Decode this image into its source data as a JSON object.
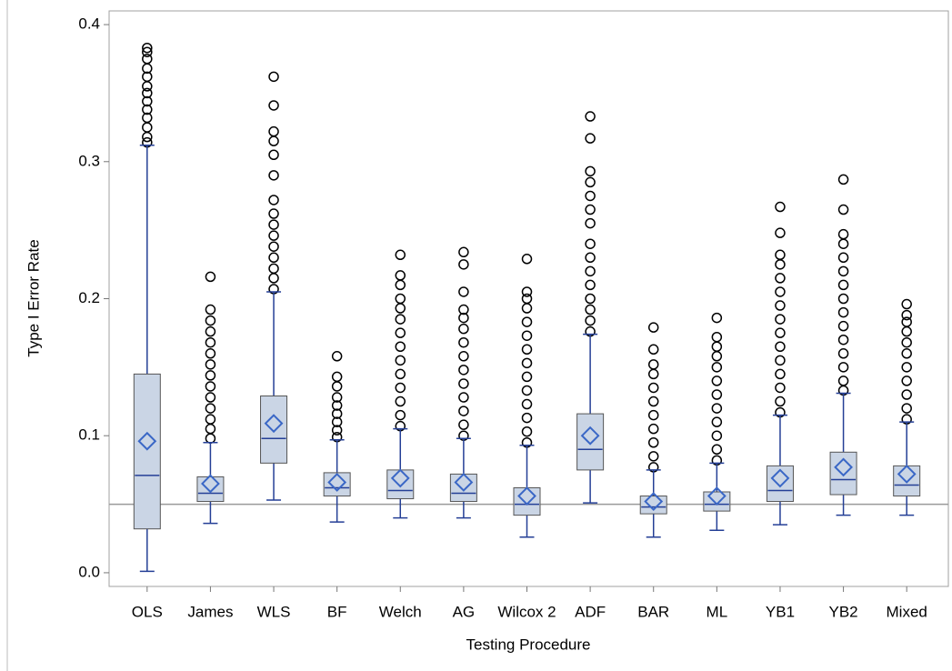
{
  "chart_data": {
    "type": "box",
    "x_label": "Testing Procedure",
    "y_label": "Type I Error Rate",
    "categories": [
      "OLS",
      "James",
      "WLS",
      "BF",
      "Welch",
      "AG",
      "Wilcox 2",
      "ADF",
      "BAR",
      "ML",
      "YB1",
      "YB2",
      "Mixed"
    ],
    "whisker_low": [
      0.001,
      0.036,
      0.053,
      0.037,
      0.04,
      0.04,
      0.026,
      0.051,
      0.026,
      0.031,
      0.035,
      0.042,
      0.042
    ],
    "q1": [
      0.032,
      0.052,
      0.08,
      0.056,
      0.054,
      0.052,
      0.042,
      0.075,
      0.043,
      0.045,
      0.052,
      0.057,
      0.056
    ],
    "median": [
      0.071,
      0.058,
      0.098,
      0.062,
      0.06,
      0.058,
      0.05,
      0.09,
      0.048,
      0.05,
      0.06,
      0.068,
      0.064
    ],
    "q3": [
      0.145,
      0.07,
      0.129,
      0.073,
      0.075,
      0.072,
      0.062,
      0.116,
      0.056,
      0.059,
      0.078,
      0.088,
      0.078
    ],
    "whisker_high": [
      0.312,
      0.095,
      0.205,
      0.097,
      0.105,
      0.098,
      0.093,
      0.174,
      0.075,
      0.08,
      0.115,
      0.131,
      0.11
    ],
    "mean": [
      0.096,
      0.065,
      0.109,
      0.066,
      0.069,
      0.066,
      0.056,
      0.1,
      0.052,
      0.056,
      0.069,
      0.077,
      0.072
    ],
    "outliers": [
      [
        0.314,
        0.318,
        0.325,
        0.332,
        0.338,
        0.344,
        0.35,
        0.355,
        0.362,
        0.368,
        0.375,
        0.38,
        0.383
      ],
      [
        0.098,
        0.105,
        0.112,
        0.12,
        0.128,
        0.136,
        0.144,
        0.152,
        0.16,
        0.168,
        0.176,
        0.184,
        0.192,
        0.216
      ],
      [
        0.207,
        0.215,
        0.222,
        0.23,
        0.238,
        0.246,
        0.254,
        0.262,
        0.272,
        0.29,
        0.305,
        0.315,
        0.322,
        0.341,
        0.362
      ],
      [
        0.099,
        0.104,
        0.11,
        0.116,
        0.122,
        0.128,
        0.136,
        0.143,
        0.158
      ],
      [
        0.107,
        0.115,
        0.125,
        0.135,
        0.145,
        0.155,
        0.165,
        0.175,
        0.185,
        0.193,
        0.2,
        0.21,
        0.217,
        0.232
      ],
      [
        0.1,
        0.108,
        0.118,
        0.128,
        0.138,
        0.148,
        0.158,
        0.168,
        0.178,
        0.186,
        0.192,
        0.205,
        0.225,
        0.234
      ],
      [
        0.095,
        0.103,
        0.113,
        0.123,
        0.133,
        0.143,
        0.153,
        0.163,
        0.173,
        0.183,
        0.193,
        0.2,
        0.205,
        0.229
      ],
      [
        0.176,
        0.184,
        0.192,
        0.2,
        0.21,
        0.22,
        0.23,
        0.24,
        0.255,
        0.265,
        0.275,
        0.285,
        0.293,
        0.317,
        0.333
      ],
      [
        0.077,
        0.085,
        0.095,
        0.105,
        0.115,
        0.125,
        0.135,
        0.145,
        0.152,
        0.163,
        0.179
      ],
      [
        0.082,
        0.09,
        0.1,
        0.11,
        0.12,
        0.13,
        0.14,
        0.15,
        0.158,
        0.165,
        0.172,
        0.186
      ],
      [
        0.117,
        0.125,
        0.135,
        0.145,
        0.155,
        0.165,
        0.175,
        0.185,
        0.195,
        0.205,
        0.215,
        0.225,
        0.232,
        0.248,
        0.267
      ],
      [
        0.133,
        0.14,
        0.15,
        0.16,
        0.17,
        0.18,
        0.19,
        0.2,
        0.21,
        0.22,
        0.23,
        0.24,
        0.247,
        0.265,
        0.287
      ],
      [
        0.112,
        0.12,
        0.13,
        0.14,
        0.15,
        0.16,
        0.168,
        0.176,
        0.183,
        0.188,
        0.196
      ]
    ],
    "reference_line": 0.05,
    "ylim": [
      -0.01,
      0.41
    ],
    "yticks": [
      {
        "value": 0,
        "label": "0.0"
      },
      0.1,
      0.2,
      0.3,
      0.4
    ],
    "box_color": "#cad5e5",
    "line_color": "#243f96",
    "mean_color": "#3a67c6",
    "outlier_color": "#000000",
    "reference_color": "#9a9a9a"
  }
}
